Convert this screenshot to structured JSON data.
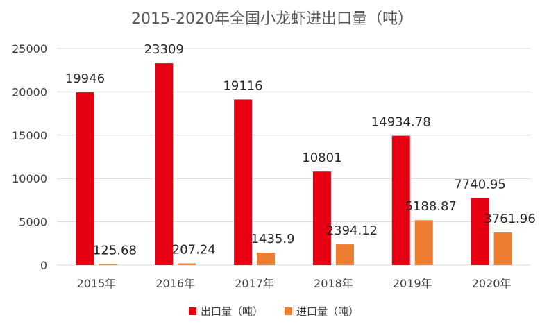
{
  "chart_data": {
    "type": "bar",
    "title": "2015-2020年全国小龙虾进出口量（吨）",
    "categories": [
      "2015年",
      "2016年",
      "2017年",
      "2018年",
      "2019年",
      "2020年"
    ],
    "series": [
      {
        "name": "出口量（吨）",
        "color": "#e60012",
        "values": [
          19946,
          23309,
          19116,
          10801,
          14934.78,
          7740.95
        ],
        "labels": [
          "19946",
          "23309",
          "19116",
          "10801",
          "14934.78",
          "7740.95"
        ]
      },
      {
        "name": "进口量（吨）",
        "color": "#ed7d31",
        "values": [
          125.68,
          207.24,
          1435.9,
          2394.12,
          5188.87,
          3761.96
        ],
        "labels": [
          "125.68",
          "207.24",
          "1435.9",
          "2394.12",
          "5188.87",
          "3761.96"
        ]
      }
    ],
    "ylim": [
      0,
      25000
    ],
    "yticks": [
      0,
      5000,
      10000,
      15000,
      20000,
      25000
    ],
    "grid": true,
    "legend_position": "bottom"
  }
}
